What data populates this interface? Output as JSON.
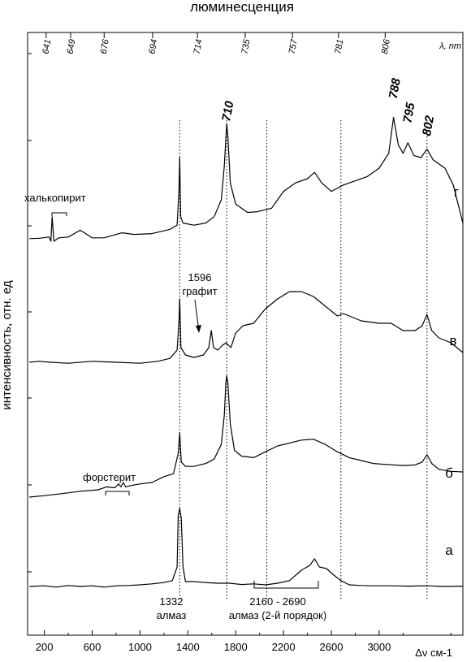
{
  "chart_data": {
    "type": "line",
    "title": "люминесценция",
    "xlabel": "Δν см-1",
    "ylabel": "интенсивность, отн. ед",
    "xlim": [
      60,
      3700
    ],
    "x_ticks": [
      "200",
      "600",
      "1000",
      "1400",
      "1800",
      "2200",
      "2600",
      "3000"
    ],
    "top_axis": {
      "unit": "λ, nm",
      "ticks": [
        {
          "label": "641",
          "raman_shift": 215
        },
        {
          "label": "649",
          "raman_shift": 420
        },
        {
          "label": "676",
          "raman_shift": 700
        },
        {
          "label": "694",
          "raman_shift": 1105
        },
        {
          "label": "714",
          "raman_shift": 1480
        },
        {
          "label": "735",
          "raman_shift": 1880
        },
        {
          "label": "757",
          "raman_shift": 2275
        },
        {
          "label": "781",
          "raman_shift": 2660
        },
        {
          "label": "806",
          "raman_shift": 3050
        }
      ]
    },
    "peak_labels": [
      {
        "text": "710",
        "x": 1725
      },
      {
        "text": "788",
        "x": 3120
      },
      {
        "text": "795",
        "x": 3240
      },
      {
        "text": "802",
        "x": 3400
      }
    ],
    "annotations": {
      "chalcopyrite": "халькопирит",
      "forsterite": "форстерит",
      "graphite_value": "1596",
      "graphite": "графит",
      "diamond_value": "1332",
      "diamond": "алмаз",
      "second_order_range": "2160 - 2690",
      "second_order": "алмаз (2-й порядок)"
    },
    "reference_lines": [
      1332,
      1725,
      2060,
      2680,
      3400
    ],
    "series": [
      {
        "name": "г",
        "values": [
          [
            75,
            0.08
          ],
          [
            160,
            0.09
          ],
          [
            240,
            0.12
          ],
          [
            255,
            0.02
          ],
          [
            265,
            0.6
          ],
          [
            280,
            0.02
          ],
          [
            320,
            0.1
          ],
          [
            400,
            0.12
          ],
          [
            500,
            0.28
          ],
          [
            600,
            0.1
          ],
          [
            700,
            0.1
          ],
          [
            850,
            0.22
          ],
          [
            950,
            0.18
          ],
          [
            1100,
            0.2
          ],
          [
            1250,
            0.3
          ],
          [
            1310,
            0.4
          ],
          [
            1325,
            1.2
          ],
          [
            1332,
            2.0
          ],
          [
            1340,
            0.6
          ],
          [
            1360,
            0.45
          ],
          [
            1450,
            0.4
          ],
          [
            1550,
            0.45
          ],
          [
            1620,
            0.6
          ],
          [
            1680,
            1.0
          ],
          [
            1705,
            1.8
          ],
          [
            1718,
            2.45
          ],
          [
            1725,
            2.8
          ],
          [
            1735,
            2.5
          ],
          [
            1755,
            1.4
          ],
          [
            1800,
            0.9
          ],
          [
            1900,
            0.7
          ],
          [
            1980,
            0.72
          ],
          [
            2100,
            0.8
          ],
          [
            2200,
            1.2
          ],
          [
            2300,
            1.4
          ],
          [
            2400,
            1.5
          ],
          [
            2460,
            1.65
          ],
          [
            2520,
            1.4
          ],
          [
            2600,
            1.2
          ],
          [
            2700,
            1.35
          ],
          [
            2800,
            1.45
          ],
          [
            2900,
            1.55
          ],
          [
            3000,
            1.75
          ],
          [
            3080,
            2.1
          ],
          [
            3120,
            2.95
          ],
          [
            3160,
            2.3
          ],
          [
            3200,
            2.1
          ],
          [
            3240,
            2.35
          ],
          [
            3290,
            2.05
          ],
          [
            3350,
            2.0
          ],
          [
            3400,
            2.2
          ],
          [
            3450,
            1.95
          ],
          [
            3550,
            1.75
          ],
          [
            3620,
            1.35
          ],
          [
            3700,
            0.45
          ]
        ]
      },
      {
        "name": "в",
        "values": [
          [
            75,
            0.1
          ],
          [
            150,
            0.12
          ],
          [
            250,
            0.1
          ],
          [
            400,
            0.08
          ],
          [
            600,
            0.12
          ],
          [
            800,
            0.1
          ],
          [
            1000,
            0.08
          ],
          [
            1150,
            0.12
          ],
          [
            1250,
            0.18
          ],
          [
            1310,
            0.35
          ],
          [
            1325,
            0.9
          ],
          [
            1332,
            1.4
          ],
          [
            1342,
            0.4
          ],
          [
            1380,
            0.25
          ],
          [
            1450,
            0.2
          ],
          [
            1530,
            0.25
          ],
          [
            1575,
            0.4
          ],
          [
            1596,
            0.75
          ],
          [
            1615,
            0.4
          ],
          [
            1650,
            0.35
          ],
          [
            1690,
            0.45
          ],
          [
            1720,
            0.5
          ],
          [
            1760,
            0.4
          ],
          [
            1800,
            0.7
          ],
          [
            1860,
            0.85
          ],
          [
            1950,
            0.9
          ],
          [
            2050,
            1.2
          ],
          [
            2150,
            1.4
          ],
          [
            2250,
            1.55
          ],
          [
            2350,
            1.55
          ],
          [
            2450,
            1.45
          ],
          [
            2550,
            1.25
          ],
          [
            2650,
            1.05
          ],
          [
            2700,
            1.1
          ],
          [
            2750,
            1.05
          ],
          [
            2850,
            0.95
          ],
          [
            3000,
            0.9
          ],
          [
            3100,
            0.9
          ],
          [
            3200,
            0.75
          ],
          [
            3300,
            0.75
          ],
          [
            3360,
            0.85
          ],
          [
            3400,
            1.08
          ],
          [
            3440,
            0.75
          ],
          [
            3500,
            0.6
          ],
          [
            3600,
            0.5
          ],
          [
            3700,
            0.3
          ]
        ]
      },
      {
        "name": "б",
        "values": [
          [
            75,
            0.0
          ],
          [
            200,
            0.05
          ],
          [
            350,
            0.12
          ],
          [
            500,
            0.2
          ],
          [
            650,
            0.25
          ],
          [
            720,
            0.35
          ],
          [
            790,
            0.32
          ],
          [
            820,
            0.45
          ],
          [
            840,
            0.35
          ],
          [
            860,
            0.5
          ],
          [
            880,
            0.35
          ],
          [
            930,
            0.4
          ],
          [
            1000,
            0.45
          ],
          [
            1100,
            0.5
          ],
          [
            1200,
            0.7
          ],
          [
            1280,
            0.8
          ],
          [
            1320,
            1.5
          ],
          [
            1332,
            2.2
          ],
          [
            1345,
            1.2
          ],
          [
            1380,
            1.05
          ],
          [
            1450,
            1.05
          ],
          [
            1550,
            1.15
          ],
          [
            1620,
            1.3
          ],
          [
            1680,
            1.8
          ],
          [
            1705,
            2.8
          ],
          [
            1718,
            3.9
          ],
          [
            1725,
            4.15
          ],
          [
            1735,
            3.9
          ],
          [
            1755,
            2.5
          ],
          [
            1790,
            1.6
          ],
          [
            1850,
            1.4
          ],
          [
            1950,
            1.35
          ],
          [
            2050,
            1.55
          ],
          [
            2150,
            1.75
          ],
          [
            2250,
            1.85
          ],
          [
            2350,
            1.95
          ],
          [
            2450,
            1.98
          ],
          [
            2550,
            1.8
          ],
          [
            2650,
            1.55
          ],
          [
            2750,
            1.35
          ],
          [
            2850,
            1.25
          ],
          [
            2950,
            1.15
          ],
          [
            3050,
            1.12
          ],
          [
            3200,
            1.08
          ],
          [
            3300,
            1.1
          ],
          [
            3360,
            1.2
          ],
          [
            3400,
            1.45
          ],
          [
            3440,
            1.15
          ],
          [
            3500,
            0.95
          ],
          [
            3600,
            0.88
          ],
          [
            3700,
            0.86
          ]
        ]
      },
      {
        "name": "а",
        "values": [
          [
            75,
            0.0
          ],
          [
            200,
            0.02
          ],
          [
            300,
            -0.02
          ],
          [
            400,
            0.03
          ],
          [
            500,
            0.0
          ],
          [
            600,
            0.02
          ],
          [
            700,
            -0.02
          ],
          [
            800,
            0.02
          ],
          [
            900,
            0.03
          ],
          [
            1000,
            0.05
          ],
          [
            1100,
            0.08
          ],
          [
            1200,
            0.12
          ],
          [
            1270,
            0.18
          ],
          [
            1310,
            0.6
          ],
          [
            1320,
            2.2
          ],
          [
            1332,
            2.4
          ],
          [
            1345,
            2.1
          ],
          [
            1360,
            0.6
          ],
          [
            1380,
            0.15
          ],
          [
            1450,
            0.15
          ],
          [
            1550,
            0.12
          ],
          [
            1650,
            0.1
          ],
          [
            1750,
            0.1
          ],
          [
            1850,
            0.06
          ],
          [
            1950,
            0.08
          ],
          [
            2050,
            0.05
          ],
          [
            2150,
            0.1
          ],
          [
            2250,
            0.18
          ],
          [
            2350,
            0.5
          ],
          [
            2420,
            0.65
          ],
          [
            2460,
            0.85
          ],
          [
            2500,
            0.6
          ],
          [
            2560,
            0.55
          ],
          [
            2620,
            0.35
          ],
          [
            2680,
            0.18
          ],
          [
            2750,
            0.05
          ],
          [
            2850,
            0.03
          ],
          [
            2950,
            0.02
          ],
          [
            3100,
            0.02
          ],
          [
            3250,
            0.01
          ],
          [
            3400,
            0.02
          ],
          [
            3550,
            0.0
          ],
          [
            3700,
            0.01
          ]
        ]
      }
    ]
  }
}
